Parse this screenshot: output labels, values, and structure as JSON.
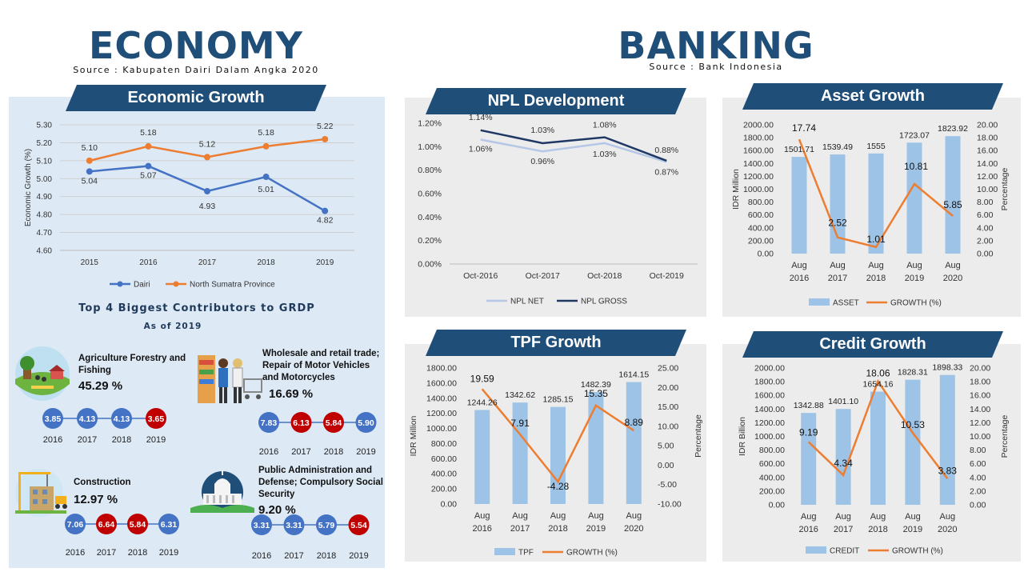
{
  "economy": {
    "title": "ECONOMY",
    "source": "Source : Kabupaten Dairi Dalam Angka 2020"
  },
  "banking": {
    "title": "BANKING",
    "source": "Source : Bank Indonesia"
  },
  "contributors": {
    "title": "Top 4 Biggest Contributors to GRDP",
    "date": "As of 2019",
    "colors": {
      "blue": "#4472c4",
      "red": "#c00000"
    },
    "items": [
      {
        "name": "Agriculture Forestry and Fishing",
        "share": "45.29 %",
        "icon": "agriculture-icon",
        "years": [
          "2016",
          "2017",
          "2018",
          "2019"
        ],
        "values": [
          "3.85",
          "4.13",
          "4.13",
          "3.65"
        ],
        "colors": [
          "blue",
          "blue",
          "blue",
          "red"
        ]
      },
      {
        "name": "Wholesale and retail trade; Repair of Motor Vehicles and Motorcycles",
        "share": "16.69 %",
        "icon": "shopping-icon",
        "years": [
          "2016",
          "2017",
          "2018",
          "2019"
        ],
        "values": [
          "7.83",
          "6.13",
          "5.84",
          "5.90"
        ],
        "colors": [
          "blue",
          "red",
          "red",
          "blue"
        ]
      },
      {
        "name": "Construction",
        "share": "12.97 %",
        "icon": "construction-icon",
        "years": [
          "2016",
          "2017",
          "2018",
          "2019"
        ],
        "values": [
          "7.06",
          "6.64",
          "5.84",
          "6.31"
        ],
        "colors": [
          "blue",
          "red",
          "red",
          "blue"
        ]
      },
      {
        "name": "Public Administration and Defense; Compulsory Social Security",
        "share": "9.20 %",
        "icon": "capitol-icon",
        "years": [
          "2016",
          "2017",
          "2018",
          "2019"
        ],
        "values": [
          "3.31",
          "3.31",
          "5.79",
          "5.54"
        ],
        "colors": [
          "blue",
          "blue",
          "blue",
          "red"
        ]
      }
    ]
  },
  "chart_data": [
    {
      "id": "economic-growth",
      "type": "line",
      "title": "Economic Growth",
      "ylabel": "Economic Growth (%)",
      "xlabel": "",
      "categories": [
        "2015",
        "2016",
        "2017",
        "2018",
        "2019"
      ],
      "yticks": [
        "4.60",
        "4.70",
        "4.80",
        "4.90",
        "5.00",
        "5.10",
        "5.20",
        "5.30"
      ],
      "ylim": [
        4.6,
        5.3
      ],
      "grid": true,
      "legend": "bottom",
      "series": [
        {
          "name": "Dairi",
          "values": [
            5.04,
            5.07,
            4.93,
            5.01,
            4.82
          ],
          "labels": [
            "5.04",
            "5.07",
            "4.93",
            "5.01",
            "4.82"
          ],
          "color": "#4472c4"
        },
        {
          "name": "North Sumatra Province",
          "values": [
            5.1,
            5.18,
            5.12,
            5.18,
            5.22
          ],
          "labels": [
            "5.10",
            "5.18",
            "5.12",
            "5.18",
            "5.22"
          ],
          "color": "#ed7d31"
        }
      ]
    },
    {
      "id": "npl-development",
      "type": "line",
      "title": "NPL Development",
      "categories": [
        "Oct-2016",
        "Oct-2017",
        "Oct-2018",
        "Oct-2019"
      ],
      "yticks": [
        "0.00%",
        "0.20%",
        "0.40%",
        "0.60%",
        "0.80%",
        "1.00%",
        "1.20%"
      ],
      "ylim": [
        0,
        1.2
      ],
      "grid": false,
      "legend": "bottom",
      "series": [
        {
          "name": "NPL NET",
          "values": [
            1.06,
            0.96,
            1.03,
            0.87
          ],
          "labels": [
            "1.06%",
            "0.96%",
            "1.03%",
            "0.87%"
          ],
          "color": "#b4c7e7"
        },
        {
          "name": "NPL GROSS",
          "values": [
            1.14,
            1.03,
            1.08,
            0.88
          ],
          "labels": [
            "1.14%",
            "1.03%",
            "1.08%",
            "0.88%"
          ],
          "color": "#1f3864"
        }
      ]
    },
    {
      "id": "asset-growth",
      "type": "bar",
      "title": "Asset Growth",
      "ylabel": "IDR Million",
      "y2label": "Percentage",
      "categories": [
        [
          "Aug",
          "2016"
        ],
        [
          "Aug",
          "2017"
        ],
        [
          "Aug",
          "2018"
        ],
        [
          "Aug",
          "2019"
        ],
        [
          "Aug",
          "2020"
        ]
      ],
      "ylim": [
        0,
        2000
      ],
      "yticks": [
        "0.00",
        "200.00",
        "400.00",
        "600.00",
        "800.00",
        "1000.00",
        "1200.00",
        "1400.00",
        "1600.00",
        "1800.00",
        "2000.00"
      ],
      "y2lim": [
        0,
        20
      ],
      "y2ticks": [
        "0.00",
        "2.00",
        "4.00",
        "6.00",
        "8.00",
        "10.00",
        "12.00",
        "14.00",
        "16.00",
        "18.00",
        "20.00"
      ],
      "legend": "bottom",
      "bars": {
        "name": "ASSET",
        "values": [
          1501.71,
          1539.49,
          1555,
          1723.07,
          1823.92
        ],
        "labels": [
          "1501.71",
          "1539.49",
          "1555",
          "1723.07",
          "1823.92"
        ],
        "color": "#9dc3e6"
      },
      "line": {
        "name": "GROWTH (%)",
        "values": [
          17.74,
          2.52,
          1.01,
          10.81,
          5.85
        ],
        "labels": [
          "17.74",
          "2.52",
          "1.01",
          "10.81",
          "5.85"
        ],
        "color": "#ed7d31"
      }
    },
    {
      "id": "tpf-growth",
      "type": "bar",
      "title": "TPF Growth",
      "ylabel": "IDR Million",
      "y2label": "Percentage",
      "categories": [
        [
          "Aug",
          "2016"
        ],
        [
          "Aug",
          "2017"
        ],
        [
          "Aug",
          "2018"
        ],
        [
          "Aug",
          "2019"
        ],
        [
          "Aug",
          "2020"
        ]
      ],
      "ylim": [
        0,
        1800
      ],
      "yticks": [
        "0.00",
        "200.00",
        "400.00",
        "600.00",
        "800.00",
        "1000.00",
        "1200.00",
        "1400.00",
        "1600.00",
        "1800.00"
      ],
      "y2lim": [
        -10,
        25
      ],
      "y2ticks": [
        "-10.00",
        "-5.00",
        "0.00",
        "5.00",
        "10.00",
        "15.00",
        "20.00",
        "25.00"
      ],
      "legend": "bottom",
      "bars": {
        "name": "TPF",
        "values": [
          1244.26,
          1342.62,
          1285.15,
          1482.39,
          1614.15
        ],
        "labels": [
          "1244.26",
          "1342.62",
          "1285.15",
          "1482.39",
          "1614.15"
        ],
        "color": "#9dc3e6"
      },
      "line": {
        "name": "GROWTH (%)",
        "values": [
          19.59,
          7.91,
          -4.28,
          15.35,
          8.89
        ],
        "labels": [
          "19.59",
          "7.91",
          "-4.28",
          "15.35",
          "8.89"
        ],
        "color": "#ed7d31"
      }
    },
    {
      "id": "credit-growth",
      "type": "bar",
      "title": "Credit Growth",
      "ylabel": "IDR Billion",
      "y2label": "Percentage",
      "categories": [
        [
          "Aug",
          "2016"
        ],
        [
          "Aug",
          "2017"
        ],
        [
          "Aug",
          "2018"
        ],
        [
          "Aug",
          "2019"
        ],
        [
          "Aug",
          "2020"
        ]
      ],
      "ylim": [
        0,
        2000
      ],
      "yticks": [
        "0.00",
        "200.00",
        "400.00",
        "600.00",
        "800.00",
        "1000.00",
        "1200.00",
        "1400.00",
        "1600.00",
        "1800.00",
        "2000.00"
      ],
      "y2lim": [
        0,
        20
      ],
      "y2ticks": [
        "0.00",
        "2.00",
        "4.00",
        "6.00",
        "8.00",
        "10.00",
        "12.00",
        "14.00",
        "16.00",
        "18.00",
        "20.00"
      ],
      "legend": "bottom",
      "bars": {
        "name": "CREDIT",
        "values": [
          1342.88,
          1401.1,
          1654.16,
          1828.31,
          1898.33
        ],
        "labels": [
          "1342.88",
          "1401.10",
          "1654.16",
          "1828.31",
          "1898.33"
        ],
        "color": "#9dc3e6"
      },
      "line": {
        "name": "GROWTH (%)",
        "values": [
          9.19,
          4.34,
          18.06,
          10.53,
          3.83
        ],
        "labels": [
          "9.19",
          "4.34",
          "18.06",
          "10.53",
          "3.83"
        ],
        "color": "#ed7d31"
      }
    }
  ]
}
